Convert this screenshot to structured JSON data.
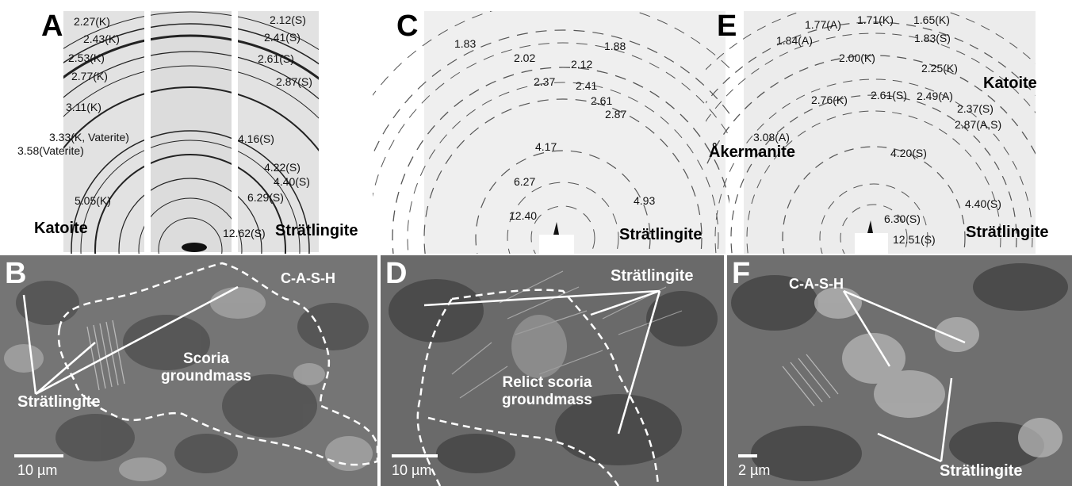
{
  "panels": {
    "A": {
      "letter": "A",
      "labels": [
        "2.27(K)",
        "2.43(K)",
        "2.53(K)",
        "2.77(K)",
        "3.11(K)",
        "3.33(K, Vaterite)",
        "3.58(Vaterite)",
        "5.05(K)",
        "2.12(S)",
        "2.41(S)",
        "2.61(S)",
        "2.87(S)",
        "4.16(S)",
        "4.22(S)",
        "4.40(S)",
        "6.29(S)",
        "12.62(S)"
      ],
      "mineral_left": "Katoite",
      "mineral_right": "Strätlingite"
    },
    "C": {
      "letter": "C",
      "labels": [
        "1.83",
        "1.88",
        "2.02",
        "2.12",
        "2.37",
        "2.41",
        "2.61",
        "2.87",
        "4.17",
        "6.27",
        "4.93",
        "12.40"
      ],
      "mineral": "Strätlingite"
    },
    "E": {
      "letter": "E",
      "labels": [
        "1.77(A)",
        "1.71(K)",
        "1.65(K)",
        "1.84(A)",
        "1.83(S)",
        "2.00(K)",
        "2.25(K)",
        "2.76(K)",
        "2.61(S)",
        "2.49(A)",
        "2.37(S)",
        "2.87(A,S)",
        "3.08(A)",
        "4.20(S)",
        "4.40(S)",
        "6.30(S)",
        "12.51(S)"
      ],
      "mineral_top": "Katoite",
      "mineral_left": "Åkermanite",
      "mineral_bottom": "Strätlingite"
    },
    "B": {
      "letter": "B",
      "cash": "C-A-S-H",
      "groundmass": "Scoria groundmass",
      "mineral": "Strätlingite",
      "scale": "10 µm"
    },
    "D": {
      "letter": "D",
      "mineral": "Strätlingite",
      "groundmass": "Relict scoria groundmass",
      "scale": "10 µm"
    },
    "F": {
      "letter": "F",
      "cash": "C-A-S-H",
      "mineral": "Strätlingite",
      "scale": "2 µm"
    }
  }
}
